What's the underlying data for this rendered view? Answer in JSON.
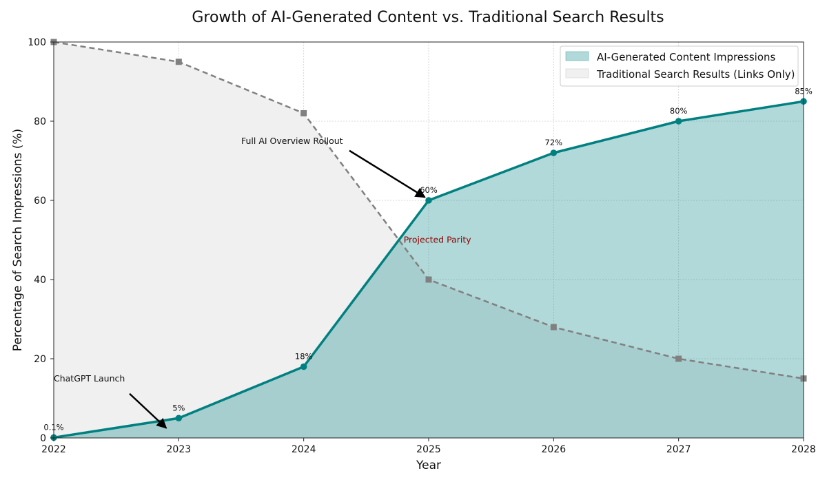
{
  "chart_data": {
    "type": "area",
    "title": "Growth of AI-Generated Content vs. Traditional Search Results",
    "xlabel": "Year",
    "ylabel": "Percentage of Search Impressions (%)",
    "x": [
      2022,
      2023,
      2024,
      2025,
      2026,
      2027,
      2028
    ],
    "xlim": [
      2022,
      2028
    ],
    "ylim": [
      0,
      100
    ],
    "yticks": [
      0,
      20,
      40,
      60,
      80,
      100
    ],
    "grid": true,
    "legend_position": "top-right",
    "series": [
      {
        "name": "AI-Generated Content Impressions",
        "values": [
          0.1,
          5,
          18,
          60,
          72,
          80,
          85
        ],
        "labels": [
          "0.1%",
          "5%",
          "18%",
          "60%",
          "72%",
          "80%",
          "85%"
        ],
        "color": "#008080",
        "fill": "#b2d8d8",
        "marker": "circle"
      },
      {
        "name": "Traditional Search Results (Links Only)",
        "values": [
          100,
          95,
          82,
          40,
          28,
          20,
          15
        ],
        "color": "#808080",
        "fill": "#f0f0f0",
        "marker": "square",
        "linestyle": "dashed"
      }
    ],
    "annotations": [
      {
        "text": "ChatGPT Launch",
        "text_x": 2022.0,
        "text_y": 15,
        "arrow_to_x": 2022.9,
        "arrow_to_y": 2.5,
        "color": "#000000"
      },
      {
        "text": "Full AI Overview Rollout",
        "text_x": 2023.5,
        "text_y": 75,
        "arrow_to_x": 2024.97,
        "arrow_to_y": 60.8,
        "color": "#000000"
      },
      {
        "text": "Projected Parity",
        "text_x": 2024.8,
        "text_y": 50,
        "color": "#8b0000"
      }
    ]
  }
}
